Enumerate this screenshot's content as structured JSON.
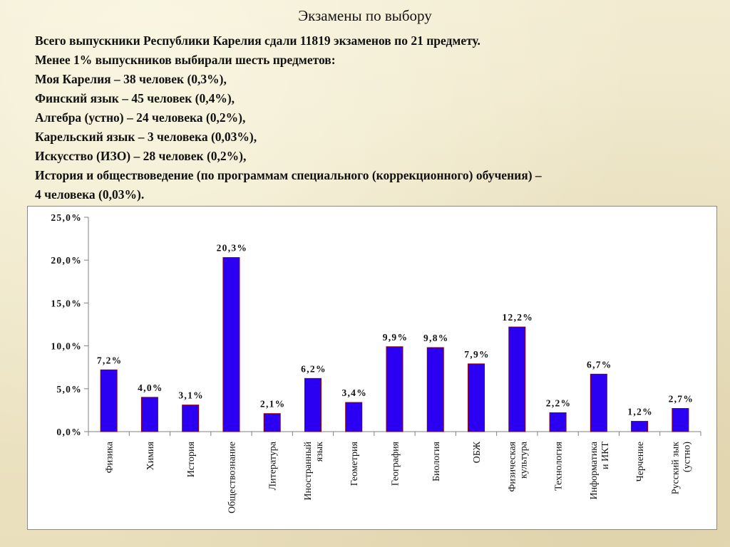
{
  "slide": {
    "title": "Экзамены по выбору",
    "lines": [
      "Всего выпускники Республики Карелия сдали 11819 экзаменов по 21 предмету.",
      "Менее 1% выпускников выбирали шесть предметов:",
      "Моя Карелия – 38 человек (0,3%),",
      "Финский язык – 45 человек (0,4%),",
      "Алгебра (устно) – 24 человека (0,2%),",
      "Карельский язык – 3 человека (0,03%),",
      "Искусство (ИЗО) – 28 человек (0,2%),",
      "История и обществоведение (по программам специального (коррекционного) обучения) –",
      "4 человека (0,03%)."
    ]
  },
  "chart_data": {
    "type": "bar",
    "categories": [
      [
        "Физика"
      ],
      [
        "Химия"
      ],
      [
        "История"
      ],
      [
        "Обществознание"
      ],
      [
        "Литература"
      ],
      [
        "Иностранный",
        "язык"
      ],
      [
        "Геометрия"
      ],
      [
        "География"
      ],
      [
        "Биология"
      ],
      [
        "ОБЖ"
      ],
      [
        "Физическая",
        "культура"
      ],
      [
        "Технология"
      ],
      [
        "Информатика",
        "и ИКТ"
      ],
      [
        "Черчение"
      ],
      [
        "Русский зык",
        "(устно)"
      ]
    ],
    "values": [
      7.2,
      4.0,
      3.1,
      20.3,
      2.1,
      6.2,
      3.4,
      9.9,
      9.8,
      7.9,
      12.2,
      2.2,
      6.7,
      1.2,
      2.7
    ],
    "data_labels": [
      "7,2%",
      "4,0%",
      "3,1%",
      "20,3%",
      "2,1%",
      "6,2%",
      "3,4%",
      "9,9%",
      "9,8%",
      "7,9%",
      "12,2%",
      "2,2%",
      "6,7%",
      "1,2%",
      "2,7%"
    ],
    "yticks": [
      0,
      5,
      10,
      15,
      20,
      25
    ],
    "ytick_labels": [
      "0,0%",
      "5,0%",
      "10,0%",
      "15,0%",
      "20,0%",
      "25,0%"
    ],
    "ylim": [
      0,
      25
    ],
    "bar_color": "#2b00f2",
    "bar_edge_color": "#8b0000",
    "grid": false,
    "legend": "none"
  }
}
